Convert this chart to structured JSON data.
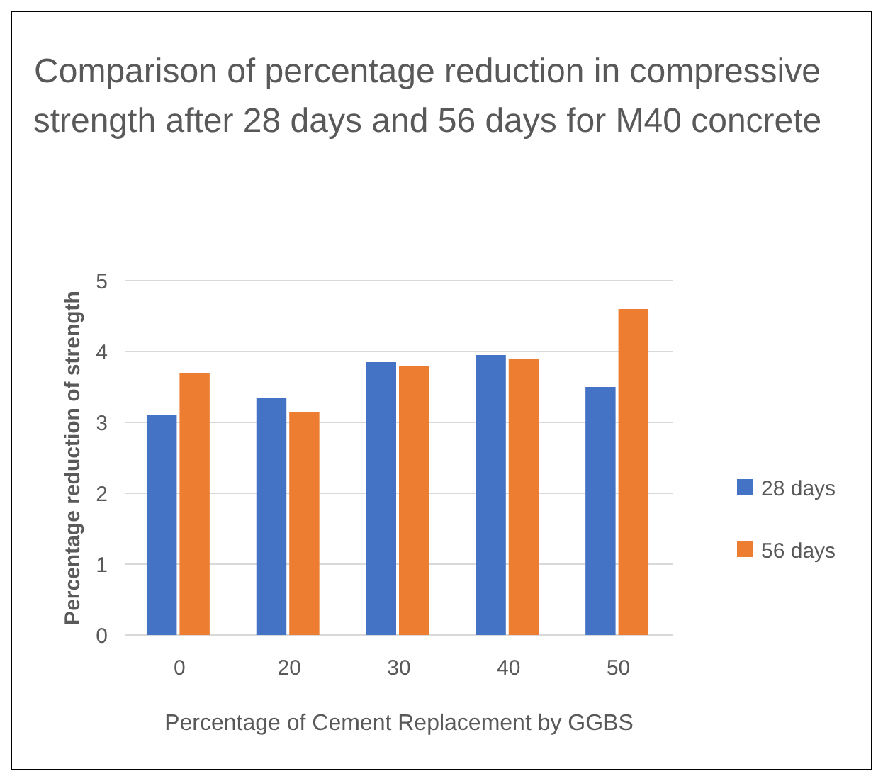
{
  "chart_data": {
    "type": "bar",
    "title": "Comparison of percentage reduction in compressive strength after 28 days and 56 days for M40 concrete",
    "xlabel": "Percentage of Cement Replacement by GGBS",
    "ylabel": "Percentage reduction of  strength",
    "categories": [
      "0",
      "20",
      "30",
      "40",
      "50"
    ],
    "series": [
      {
        "name": "28 days",
        "color": "#4472c4",
        "values": [
          3.1,
          3.35,
          3.85,
          3.95,
          3.5
        ]
      },
      {
        "name": "56 days",
        "color": "#ed7d31",
        "values": [
          3.7,
          3.15,
          3.8,
          3.9,
          4.6
        ]
      }
    ],
    "ylim": [
      0,
      5
    ],
    "yticks": [
      0,
      1,
      2,
      3,
      4,
      5
    ],
    "grid": "y",
    "legend": "right"
  }
}
